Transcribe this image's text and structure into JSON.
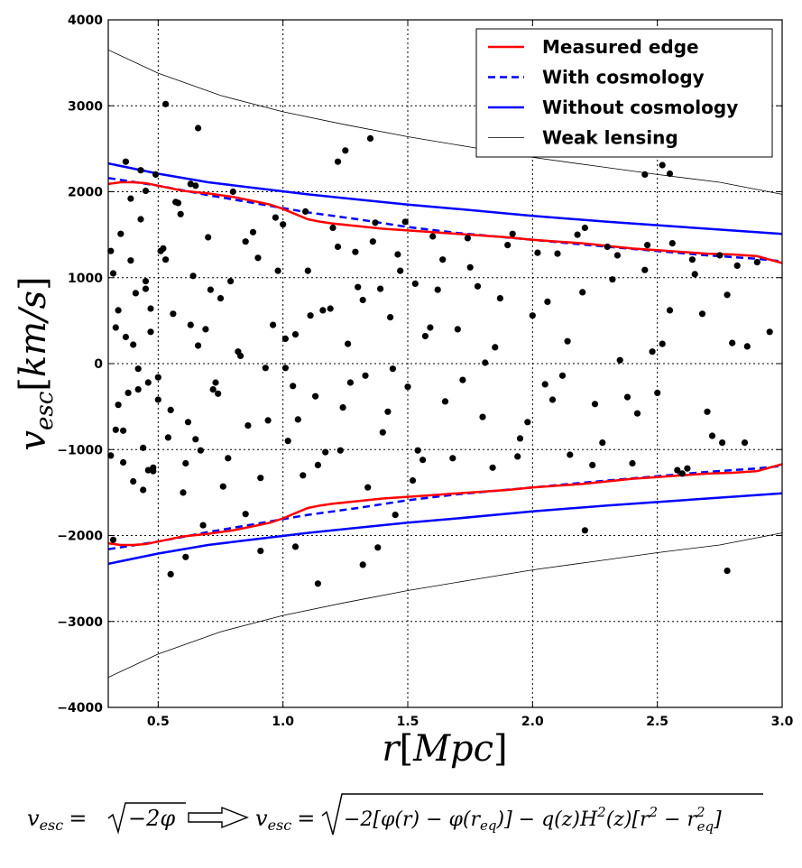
{
  "chart_data": {
    "type": "scatter",
    "xlabel": "r[Mpc]",
    "ylabel": "v_esc[km/s]",
    "xlim": [
      0.3,
      3.0
    ],
    "ylim": [
      -4000,
      4000
    ],
    "x_ticks": [
      "0.5",
      "1.0",
      "1.5",
      "2.0",
      "2.5",
      "3.0"
    ],
    "x_tick_values": [
      0.5,
      1.0,
      1.5,
      2.0,
      2.5,
      3.0
    ],
    "y_ticks": [
      "4000",
      "3000",
      "2000",
      "1000",
      "0",
      "−1000",
      "−2000",
      "−3000",
      "−4000"
    ],
    "y_tick_values": [
      4000,
      3000,
      2000,
      1000,
      0,
      -1000,
      -2000,
      -3000,
      -4000
    ],
    "grid": true,
    "legend_position": "top-right",
    "series": [
      {
        "name": "Measured edge",
        "color": "#ff0000",
        "style": "solid",
        "x": [
          0.3,
          0.35,
          0.4,
          0.45,
          0.5,
          0.6,
          0.7,
          0.8,
          0.9,
          0.95,
          1.0,
          1.05,
          1.1,
          1.15,
          1.2,
          1.3,
          1.4,
          1.5,
          1.6,
          1.7,
          1.8,
          1.9,
          2.0,
          2.1,
          2.2,
          2.3,
          2.4,
          2.5,
          2.6,
          2.7,
          2.8,
          2.9,
          3.0
        ],
        "y": [
          2090,
          2110,
          2110,
          2100,
          2070,
          2010,
          1980,
          1940,
          1880,
          1850,
          1800,
          1740,
          1680,
          1650,
          1630,
          1600,
          1570,
          1550,
          1530,
          1510,
          1490,
          1470,
          1440,
          1420,
          1400,
          1370,
          1340,
          1320,
          1300,
          1280,
          1270,
          1250,
          1170
        ]
      },
      {
        "name": "With cosmology",
        "color": "#0000ff",
        "style": "dashed",
        "x": [
          0.3,
          0.5,
          0.7,
          0.9,
          1.0,
          1.1,
          1.3,
          1.5,
          1.7,
          2.0,
          2.3,
          2.5,
          2.7,
          2.9,
          3.0
        ],
        "y": [
          2160,
          2070,
          1960,
          1860,
          1810,
          1760,
          1680,
          1590,
          1520,
          1440,
          1360,
          1310,
          1260,
          1220,
          1190
        ]
      },
      {
        "name": "Without cosmology",
        "color": "#0000ff",
        "style": "solid",
        "x": [
          0.3,
          0.5,
          0.7,
          0.9,
          1.1,
          1.3,
          1.5,
          1.7,
          2.0,
          2.3,
          2.5,
          2.7,
          3.0
        ],
        "y": [
          2330,
          2210,
          2110,
          2040,
          1970,
          1910,
          1850,
          1800,
          1720,
          1650,
          1610,
          1570,
          1510
        ]
      },
      {
        "name": "Weak lensing",
        "color": "#000000",
        "style": "thin",
        "x": [
          0.3,
          0.5,
          0.75,
          1.0,
          1.25,
          1.5,
          1.75,
          2.0,
          2.25,
          2.5,
          2.75,
          3.0
        ],
        "y": [
          3650,
          3380,
          3120,
          2930,
          2780,
          2640,
          2520,
          2400,
          2300,
          2200,
          2110,
          1970
        ]
      }
    ],
    "points_x": [
      0.31,
      0.32,
      0.33,
      0.34,
      0.35,
      0.36,
      0.37,
      0.38,
      0.39,
      0.4,
      0.41,
      0.42,
      0.43,
      0.44,
      0.45,
      0.46,
      0.47,
      0.48,
      0.5,
      0.52,
      0.54,
      0.56,
      0.58,
      0.6,
      0.62,
      0.64,
      0.66,
      0.68,
      0.7,
      0.72,
      0.75,
      0.78,
      0.8,
      0.83,
      0.86,
      0.9,
      0.93,
      0.96,
      1.0,
      1.02,
      1.05,
      1.08,
      1.1,
      1.13,
      1.16,
      1.2,
      1.23,
      1.26,
      1.3,
      1.33,
      1.36,
      1.4,
      1.43,
      1.46,
      1.5,
      1.53,
      1.56,
      1.6,
      1.65,
      1.7,
      1.75,
      1.8,
      1.85,
      1.9,
      1.95,
      2.0,
      2.05,
      2.1,
      2.15,
      2.2,
      2.25,
      2.3,
      2.35,
      2.4,
      2.45,
      2.5,
      2.55,
      2.6,
      2.65,
      2.7,
      2.75,
      2.8,
      2.85,
      2.9,
      0.33,
      0.36,
      0.39,
      0.42,
      0.45,
      0.48,
      0.51,
      0.55,
      0.59,
      0.63,
      0.67,
      0.71,
      0.76,
      0.82,
      0.88,
      0.94,
      0.98,
      1.04,
      1.09,
      1.14,
      1.19,
      1.24,
      1.29,
      1.34,
      1.39,
      1.44,
      1.49,
      1.54,
      1.59,
      1.64,
      1.72,
      1.78,
      1.84,
      1.92,
      1.98,
      2.06,
      2.12,
      2.18,
      2.24,
      2.32,
      2.38,
      2.46,
      2.52,
      2.58,
      2.64,
      2.72,
      2.78,
      2.86,
      0.31,
      0.34,
      0.37,
      0.4,
      0.44,
      0.47,
      0.5,
      0.53,
      0.57,
      0.61,
      0.65,
      0.69,
      0.73,
      0.79,
      0.85,
      0.91,
      0.97,
      1.01,
      1.06,
      1.11,
      1.17,
      1.22,
      1.27,
      1.32,
      1.37,
      1.42,
      1.47,
      1.52,
      1.57,
      1.62,
      1.68,
      1.74,
      1.81,
      1.87,
      1.94,
      2.02,
      2.08,
      2.14,
      2.21,
      2.28,
      2.34,
      2.42,
      2.48,
      2.56,
      2.62,
      2.68,
      2.76,
      2.82,
      2.95,
      0.46,
      0.45,
      1.01,
      0.74,
      0.53,
      0.66,
      1.35,
      1.25,
      1.22,
      2.45,
      2.52,
      2.55,
      0.43,
      0.49,
      0.63,
      0.65,
      1.38,
      0.91,
      1.14,
      0.55,
      0.32,
      0.61,
      1.05,
      0.85,
      2.78,
      1.32,
      1.45,
      2.21
    ],
    "points_y": [
      -1070,
      1050,
      -770,
      620,
      1510,
      -1150,
      310,
      -340,
      1200,
      -1370,
      820,
      -60,
      1680,
      -980,
      2010,
      -220,
      370,
      -1250,
      -420,
      1340,
      -860,
      580,
      1870,
      -1500,
      -680,
      1020,
      210,
      -1880,
      1470,
      -300,
      760,
      -1100,
      2000,
      90,
      -720,
      1230,
      -50,
      450,
      1620,
      -900,
      340,
      -1300,
      1080,
      -380,
      620,
      1580,
      -1010,
      230,
      890,
      -140,
      1420,
      -800,
      540,
      1270,
      -270,
      930,
      -1120,
      1480,
      -440,
      400,
      1120,
      -620,
      190,
      1380,
      -870,
      560,
      -240,
      1280,
      -1060,
      830,
      -470,
      1360,
      40,
      -1160,
      1090,
      -340,
      620,
      -1280,
      1040,
      -560,
      1260,
      240,
      -920,
      1180,
      420,
      -780,
      1920,
      -300,
      960,
      -1210,
      1310,
      -540,
      1740,
      450,
      -1010,
      860,
      -1430,
      140,
      1530,
      -660,
      1080,
      -260,
      1770,
      -1180,
      640,
      -510,
      1300,
      -1440,
      870,
      -60,
      1650,
      -1010,
      420,
      1210,
      -190,
      900,
      -1210,
      1510,
      -680,
      720,
      -140,
      1500,
      -1180,
      980,
      -390,
      1380,
      230,
      -1240,
      1210,
      -840,
      800,
      200,
      1310,
      -480,
      2350,
      220,
      -1470,
      640,
      -160,
      1210,
      1880,
      -1160,
      -880,
      400,
      -220,
      960,
      1420,
      -1330,
      1700,
      290,
      -650,
      560,
      -1030,
      1360,
      -220,
      740,
      1640,
      -560,
      1080,
      -1360,
      320,
      860,
      -1100,
      1460,
      10,
      760,
      -1080,
      1290,
      -420,
      260,
      1580,
      -920,
      1260,
      -580,
      140,
      1400,
      -1220,
      580,
      -920,
      1140,
      370,
      -1240,
      870,
      -50,
      -350,
      3020,
      2740,
      2620,
      2480,
      2350,
      2200,
      2310,
      2210,
      2250,
      2200,
      2090,
      2070,
      -2140,
      -2180,
      -2560,
      -2450,
      -2050,
      -2250,
      -2130,
      -1750,
      -2410,
      -2340,
      -1760,
      -1940,
      -1190,
      -1700,
      -1800,
      -1380
    ],
    "equation_left": "v_esc = √(−2φ)",
    "equation_right": "v_esc = √(−2[φ(r) − φ(r_eq)] − q(z)H²(z)[r² − r²_eq])"
  },
  "legend": [
    {
      "label": "Measured edge",
      "color": "#ff0000",
      "style": "solid"
    },
    {
      "label": "With cosmology",
      "color": "#0000ff",
      "style": "dashed"
    },
    {
      "label": "Without cosmology",
      "color": "#0000ff",
      "style": "solid"
    },
    {
      "label": "Weak lensing",
      "color": "#000000",
      "style": "thin"
    }
  ],
  "axes": {
    "xlabel_main": "r",
    "xlabel_unit": "Mpc",
    "ylabel_main": "v",
    "ylabel_sub": "esc",
    "ylabel_unit": "km/s"
  },
  "equation": {
    "left_v": "v",
    "left_sub": "esc",
    "left_eq": "=",
    "left_radicand": "−2φ",
    "right_v": "v",
    "right_sub": "esc",
    "right_eq": "=",
    "right_radicand_a": "−2[φ(r) − φ(r",
    "right_sub_eq1": "eq",
    "right_radicand_b": ")] − q(z)H",
    "right_sup_2a": "2",
    "right_radicand_c": "(z)[r",
    "right_sup_2b": "2",
    "right_radicand_d": " − r",
    "right_sup_2c": "2",
    "right_sub_eq2": "eq",
    "right_radicand_e": "]"
  }
}
